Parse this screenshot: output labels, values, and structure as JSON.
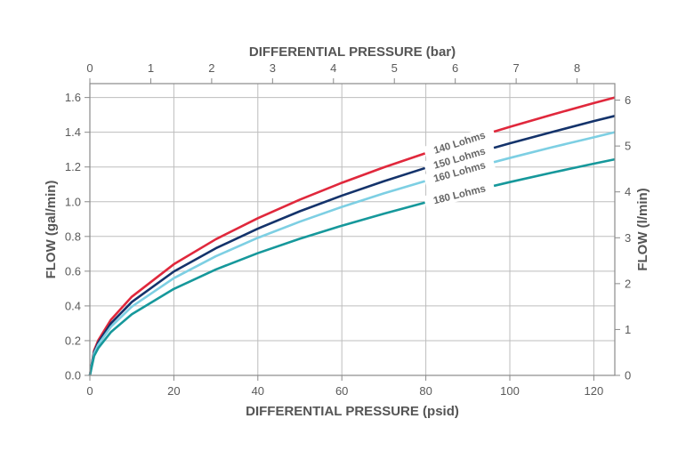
{
  "chart_data": {
    "type": "line",
    "title": "",
    "xlabel": "DIFFERENTIAL PRESSURE (psid)",
    "x2label": "DIFFERENTIAL PRESSURE (bar)",
    "ylabel": "FLOW (gal/min)",
    "y2label": "FLOW (l/min)",
    "xlim": [
      0,
      125
    ],
    "ylim": [
      0,
      1.68
    ],
    "x2lim": [
      0,
      8.62
    ],
    "y2lim": [
      0,
      6.36
    ],
    "xticks": [
      0,
      20,
      40,
      60,
      80,
      100,
      120
    ],
    "yticks": [
      0.0,
      0.2,
      0.4,
      0.6,
      0.8,
      1.0,
      1.2,
      1.4,
      1.6
    ],
    "x2ticks": [
      0,
      1,
      2,
      3,
      4,
      5,
      6,
      7,
      8
    ],
    "y2ticks": [
      0,
      1,
      2,
      3,
      4,
      5,
      6
    ],
    "ytick_labels": [
      "0.0",
      "0.2",
      "0.4",
      "0.6",
      "0.8",
      "1.0",
      "1.2",
      "1.4",
      "1.6"
    ],
    "grid": true,
    "legend": "inline labels on curves",
    "x": [
      0,
      1,
      2,
      5,
      10,
      20,
      30,
      40,
      50,
      60,
      70,
      80,
      90,
      100,
      110,
      120,
      125
    ],
    "series": [
      {
        "name": "140 Lohms",
        "color": "#e0283c",
        "values": [
          0,
          0.143,
          0.202,
          0.32,
          0.453,
          0.64,
          0.784,
          0.905,
          1.012,
          1.109,
          1.198,
          1.28,
          1.358,
          1.431,
          1.501,
          1.568,
          1.6
        ]
      },
      {
        "name": "150 Lohms",
        "color": "#14336b",
        "values": [
          0,
          0.134,
          0.189,
          0.299,
          0.423,
          0.598,
          0.732,
          0.845,
          0.945,
          1.035,
          1.118,
          1.195,
          1.268,
          1.336,
          1.401,
          1.464,
          1.494
        ]
      },
      {
        "name": "160 Lohms",
        "color": "#7dcfe3",
        "values": [
          0,
          0.125,
          0.177,
          0.28,
          0.396,
          0.56,
          0.686,
          0.792,
          0.885,
          0.97,
          1.048,
          1.12,
          1.188,
          1.252,
          1.313,
          1.371,
          1.4
        ]
      },
      {
        "name": "180 Lohms",
        "color": "#16989b",
        "values": [
          0,
          0.111,
          0.157,
          0.249,
          0.352,
          0.498,
          0.61,
          0.704,
          0.787,
          0.862,
          0.931,
          0.996,
          1.056,
          1.113,
          1.167,
          1.219,
          1.244
        ]
      }
    ]
  }
}
